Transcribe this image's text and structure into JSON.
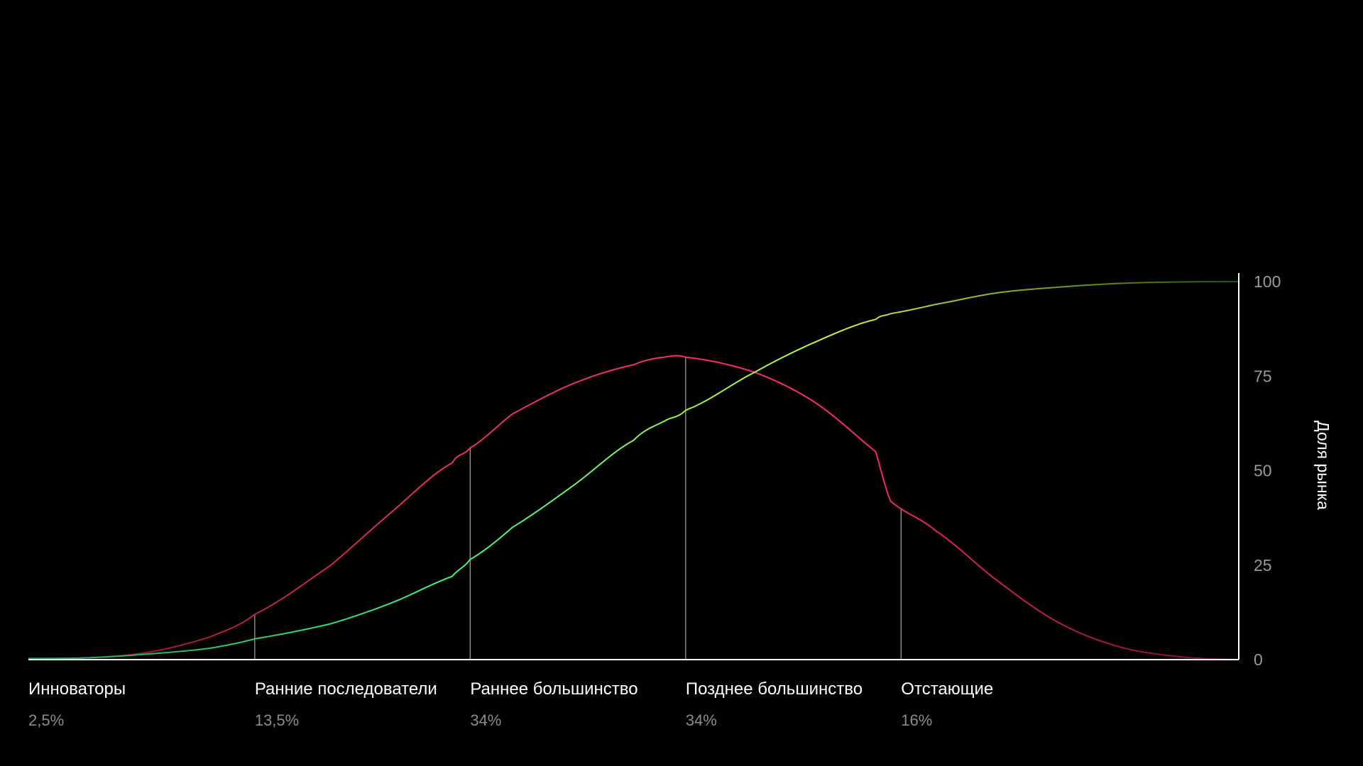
{
  "chart_data": {
    "type": "line",
    "title": "",
    "xlabel": "",
    "ylabel": "Доля рынка",
    "ylim": [
      0,
      100
    ],
    "yticks": [
      0,
      25,
      50,
      75,
      100
    ],
    "y_axis_side": "right",
    "grid": false,
    "legend": "none",
    "segments": [
      {
        "label": "Инноваторы",
        "share": "2,5%"
      },
      {
        "label": "Ранние последователи",
        "share": "13,5%"
      },
      {
        "label": "Раннее большинство",
        "share": "34%"
      },
      {
        "label": "Позднее большинство",
        "share": "34%"
      },
      {
        "label": "Отстающие",
        "share": "16%"
      }
    ],
    "x": [
      0,
      5,
      10,
      15,
      18.7,
      25,
      30,
      35,
      36.5,
      40,
      45,
      50,
      52.5,
      54.3,
      60,
      65,
      70,
      71.2,
      75,
      80,
      85,
      90,
      95,
      100
    ],
    "series": [
      {
        "key": "adoption",
        "values": [
          0.3,
          0.5,
          2,
          6,
          12,
          25,
          39,
          52,
          56,
          65,
          73,
          78,
          80,
          80,
          76,
          68,
          55,
          42,
          34,
          21,
          10,
          3.5,
          0.8,
          0
        ],
        "colors": [
          "#7a1026",
          "#e8335a",
          "#ff2a7a",
          "#7a1030"
        ]
      },
      {
        "key": "market_share",
        "values": [
          0.3,
          0.5,
          1.5,
          3,
          5.5,
          9.5,
          15,
          22,
          26.5,
          35,
          46,
          58,
          63,
          66,
          76,
          84,
          90,
          91.5,
          94,
          97,
          98.5,
          99.5,
          99.9,
          100
        ],
        "colors": [
          "#1ea05a",
          "#3df27f",
          "#c8f542",
          "#2d4d10"
        ]
      }
    ],
    "dividers": [
      18.7,
      36.5,
      54.3,
      72.1
    ]
  }
}
